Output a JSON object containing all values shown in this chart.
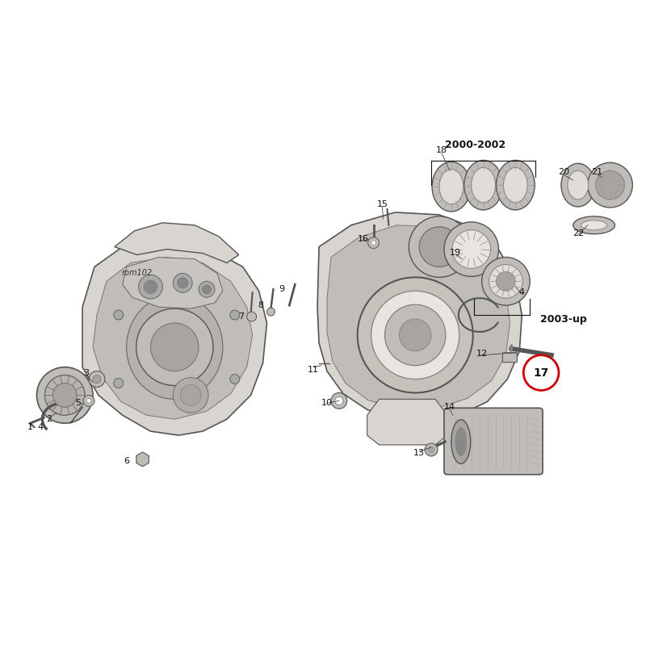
{
  "background_color": "#ffffff",
  "fig_width": 8.0,
  "fig_height": 8.0,
  "dpi": 100,
  "circle17_color": "#cc0000",
  "circle17_linewidth": 2.0,
  "label_fontsize": 9,
  "annotation_fontsize": 8,
  "text_color": "#111111",
  "part_edge_color": "#555555",
  "part_fill_light": "#d8d5d0",
  "part_fill_mid": "#c0bdb8",
  "part_fill_dark": "#a8a5a0"
}
